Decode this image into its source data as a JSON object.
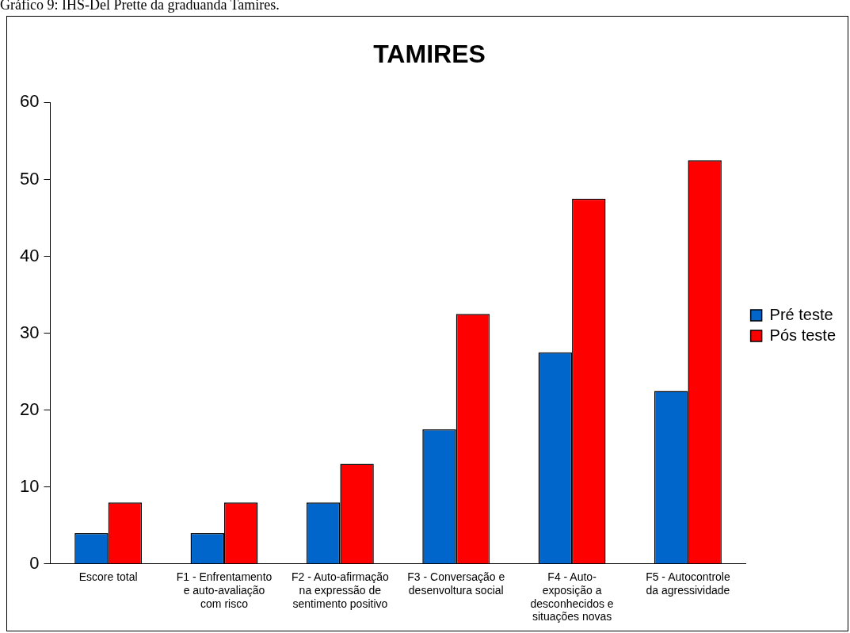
{
  "chart_data": {
    "type": "bar",
    "title": "TAMIRES",
    "annotations": [
      "Gráfico 9: IHS-Del Prette da graduanda Tamires."
    ],
    "categories": [
      "Escore total",
      "F1 - Enfrentamento e auto-avaliação com risco",
      "F2 - Auto-afirmação na expressão de sentimento positivo",
      "F3 - Conversação e desenvoltura social",
      "F4 - Auto-exposição a desconhecidos e situações novas",
      "F5 - Autocontrole da agressividade"
    ],
    "series": [
      {
        "name": "Pré teste",
        "color": "#0066cc",
        "values": [
          4,
          4,
          8,
          17.5,
          27.5,
          22.5
        ]
      },
      {
        "name": "Pós teste",
        "color": "#ff0000",
        "values": [
          8,
          8,
          13,
          32.5,
          47.5,
          52.5
        ]
      }
    ],
    "ylim": [
      0,
      60
    ],
    "yticks": [
      0,
      10,
      20,
      30,
      40,
      50,
      60
    ],
    "grid": false,
    "legend": "right"
  }
}
